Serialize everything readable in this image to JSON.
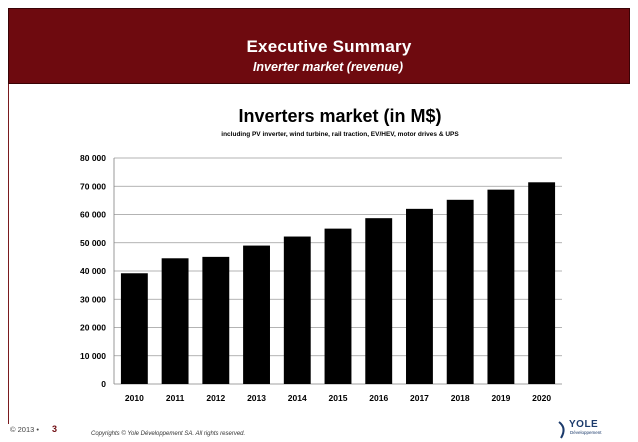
{
  "header": {
    "title": "Executive Summary",
    "subtitle": "Inverter market (revenue)"
  },
  "chart_data": {
    "type": "bar",
    "title": "Inverters market (in M$)",
    "subtitle": "including PV inverter, wind turbine, rail traction, EV/HEV, motor drives & UPS",
    "categories": [
      "2010",
      "2011",
      "2012",
      "2013",
      "2014",
      "2015",
      "2016",
      "2017",
      "2018",
      "2019",
      "2020"
    ],
    "values": [
      39200,
      44500,
      45000,
      49000,
      52200,
      55000,
      58700,
      62000,
      65200,
      68800,
      71400
    ],
    "yticks": [
      "0",
      "10 000",
      "20 000",
      "30 000",
      "40 000",
      "50 000",
      "60 000",
      "70 000",
      "80 000"
    ],
    "ylim": [
      0,
      80000
    ],
    "xlabel": "",
    "ylabel": "",
    "grid": true,
    "bar_color": "#000000"
  },
  "footer": {
    "copyright": "© 2013 •",
    "page_number": "3",
    "rights": "Copyrights © Yole Développement SA. All rights reserved.",
    "logo_text": "YOLE",
    "logo_sub": "Développement"
  }
}
